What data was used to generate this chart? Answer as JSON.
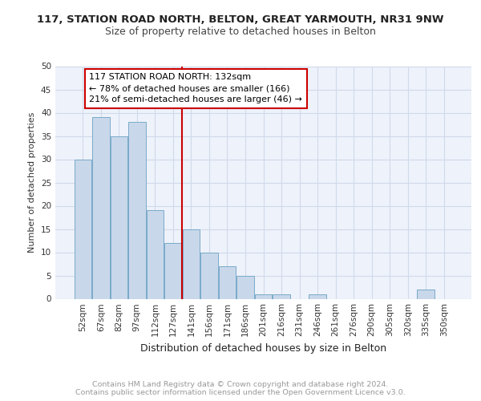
{
  "title1": "117, STATION ROAD NORTH, BELTON, GREAT YARMOUTH, NR31 9NW",
  "title2": "Size of property relative to detached houses in Belton",
  "xlabel": "Distribution of detached houses by size in Belton",
  "ylabel": "Number of detached properties",
  "categories": [
    "52sqm",
    "67sqm",
    "82sqm",
    "97sqm",
    "112sqm",
    "127sqm",
    "141sqm",
    "156sqm",
    "171sqm",
    "186sqm",
    "201sqm",
    "216sqm",
    "231sqm",
    "246sqm",
    "261sqm",
    "276sqm",
    "290sqm",
    "305sqm",
    "320sqm",
    "335sqm",
    "350sqm"
  ],
  "values": [
    30,
    39,
    35,
    38,
    19,
    12,
    15,
    10,
    7,
    5,
    1,
    1,
    0,
    1,
    0,
    0,
    0,
    0,
    0,
    2,
    0
  ],
  "bar_color": "#c8d8ea",
  "bar_edge_color": "#7aaaca",
  "vline_x_index": 5.5,
  "vline_color": "#cc0000",
  "annotation_text": "117 STATION ROAD NORTH: 132sqm\n← 78% of detached houses are smaller (166)\n21% of semi-detached houses are larger (46) →",
  "annotation_box_facecolor": "#ffffff",
  "annotation_box_edgecolor": "#cc0000",
  "ylim": [
    0,
    50
  ],
  "yticks": [
    0,
    5,
    10,
    15,
    20,
    25,
    30,
    35,
    40,
    45,
    50
  ],
  "grid_color": "#d0daea",
  "background_color": "#eef2fa",
  "footer_text": "Contains HM Land Registry data © Crown copyright and database right 2024.\nContains public sector information licensed under the Open Government Licence v3.0.",
  "footer_color": "#999999",
  "title1_fontsize": 9.5,
  "title2_fontsize": 9,
  "ylabel_fontsize": 8,
  "xlabel_fontsize": 9,
  "tick_fontsize": 7.5,
  "annot_fontsize": 8
}
